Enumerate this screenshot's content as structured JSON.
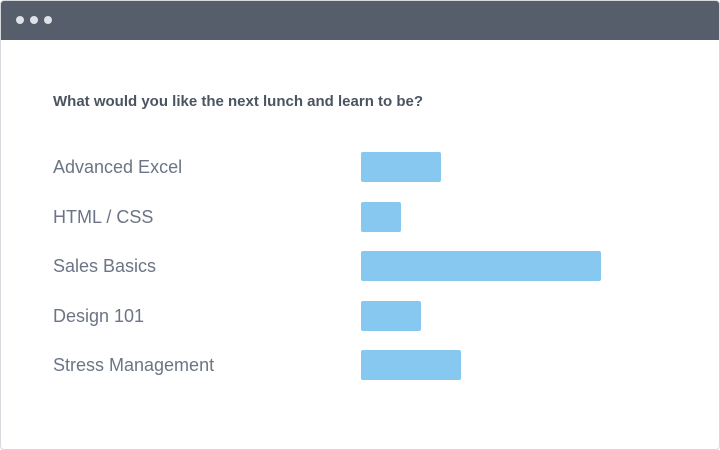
{
  "window": {
    "titlebar_controls": [
      "dot",
      "dot",
      "dot"
    ]
  },
  "poll": {
    "question": "What would you like the next lunch and learn to be?",
    "bar_color": "#86c8f0",
    "options": [
      {
        "label": "Advanced Excel",
        "votes": 4
      },
      {
        "label": "HTML / CSS",
        "votes": 2
      },
      {
        "label": "Sales Basics",
        "votes": 12
      },
      {
        "label": "Design 101",
        "votes": 3
      },
      {
        "label": "Stress Management",
        "votes": 5
      }
    ]
  },
  "chart_data": {
    "type": "bar",
    "orientation": "horizontal",
    "title": "What would you like the next lunch and learn to be?",
    "categories": [
      "Advanced Excel",
      "HTML / CSS",
      "Sales Basics",
      "Design 101",
      "Stress Management"
    ],
    "values": [
      4,
      2,
      12,
      3,
      5
    ],
    "xlabel": "",
    "ylabel": "",
    "grid": false
  }
}
